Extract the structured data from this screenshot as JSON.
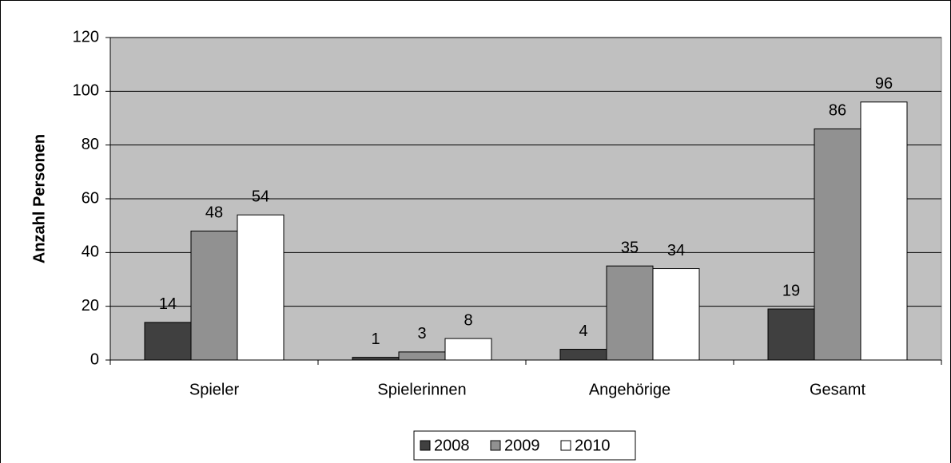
{
  "chart_data": {
    "type": "bar",
    "y_label": "Anzahl Personen",
    "categories": [
      "Spieler",
      "Spielerinnen",
      "Angehörige",
      "Gesamt"
    ],
    "series": [
      {
        "name": "2008",
        "color": "#404040",
        "values": [
          14,
          1,
          4,
          19
        ]
      },
      {
        "name": "2009",
        "color": "#919191",
        "values": [
          48,
          3,
          35,
          86
        ]
      },
      {
        "name": "2010",
        "color": "#ffffff",
        "values": [
          54,
          8,
          34,
          96
        ]
      }
    ],
    "ylim": [
      0,
      120
    ],
    "yticks": [
      0,
      20,
      40,
      60,
      80,
      100,
      120
    ],
    "grid": true,
    "legend": "bottom"
  }
}
